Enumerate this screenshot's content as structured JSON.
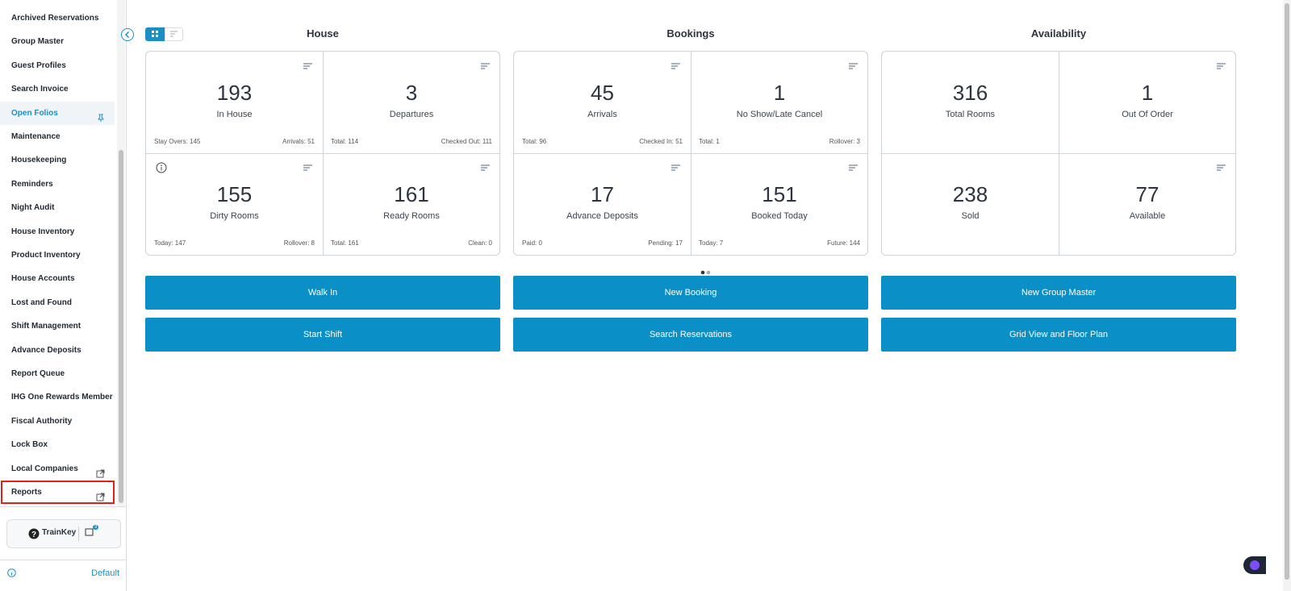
{
  "sidebar": {
    "items": [
      {
        "label": "Archived Reservations"
      },
      {
        "label": "Group Master"
      },
      {
        "label": "Guest Profiles"
      },
      {
        "label": "Search Invoice"
      },
      {
        "label": "Open Folios",
        "active": true,
        "icon": "pin"
      },
      {
        "label": "Maintenance"
      },
      {
        "label": "Housekeeping"
      },
      {
        "label": "Reminders"
      },
      {
        "label": "Night Audit"
      },
      {
        "label": "House Inventory"
      },
      {
        "label": "Product Inventory"
      },
      {
        "label": "House Accounts"
      },
      {
        "label": "Lost and Found"
      },
      {
        "label": "Shift Management"
      },
      {
        "label": "Advance Deposits"
      },
      {
        "label": "Report Queue"
      },
      {
        "label": "IHG One Rewards  Member"
      },
      {
        "label": "Fiscal Authority"
      },
      {
        "label": "Lock Box"
      },
      {
        "label": "Local Companies",
        "icon": "external"
      },
      {
        "label": "Reports",
        "icon": "external",
        "outlined": true
      }
    ],
    "trainkey": "TrainKey",
    "badge": "3",
    "footer": "Default"
  },
  "sections": [
    {
      "title": "House",
      "cards": [
        {
          "value": 193,
          "label": "In House",
          "left": "Stay Overs: 145",
          "right": "Arrivals: 51",
          "menu": true
        },
        {
          "value": 3,
          "label": "Departures",
          "left": "Total: 114",
          "right": "Checked Out: 111",
          "menu": true
        },
        {
          "value": 155,
          "label": "Dirty Rooms",
          "left": "Today: 147",
          "right": "Rollover: 8",
          "menu": true,
          "info": true
        },
        {
          "value": 161,
          "label": "Ready Rooms",
          "left": "Total: 161",
          "right": "Clean: 0",
          "menu": true
        }
      ]
    },
    {
      "title": "Bookings",
      "cards": [
        {
          "value": 45,
          "label": "Arrivals",
          "left": "Total: 96",
          "right": "Checked In: 51",
          "menu": true
        },
        {
          "value": 1,
          "label": "No Show/Late Cancel",
          "left": "Total: 1",
          "right": "Rollover: 3",
          "menu": true
        },
        {
          "value": 17,
          "label": "Advance Deposits",
          "left": "Paid: 0",
          "right": "Pending: 17",
          "menu": true
        },
        {
          "value": 151,
          "label": "Booked Today",
          "left": "Today: 7",
          "right": "Future: 144",
          "menu": true
        }
      ]
    },
    {
      "title": "Availability",
      "cards": [
        {
          "value": 316,
          "label": "Total Rooms",
          "menu": false
        },
        {
          "value": 1,
          "label": "Out Of Order",
          "menu": true
        },
        {
          "value": 238,
          "label": "Sold",
          "menu": false
        },
        {
          "value": 77,
          "label": "Available",
          "menu": true
        }
      ]
    }
  ],
  "buttons": [
    [
      "Walk In",
      "New Booking",
      "New Group Master"
    ],
    [
      "Start Shift",
      "Search Reservations",
      "Grid View and Floor Plan"
    ]
  ]
}
